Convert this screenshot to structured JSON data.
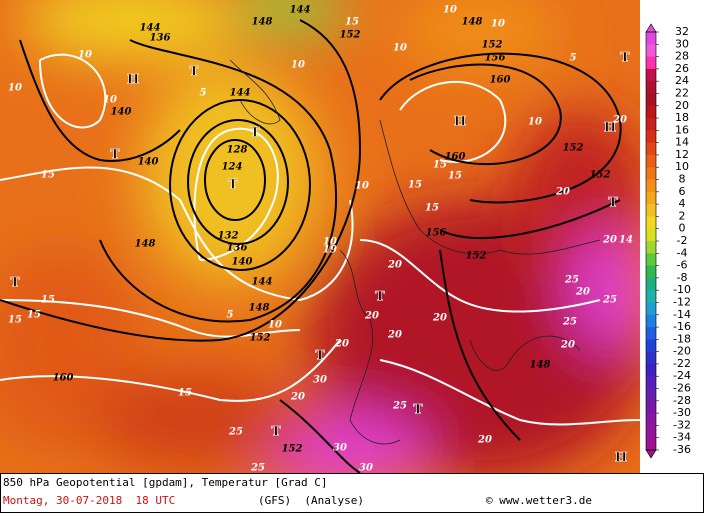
{
  "footer": {
    "title": "850 hPa Geopotential [gpdam], Temperatur [Grad C]",
    "date": "Montag, 30-07-2018  18 UTC",
    "model": "(GFS)  (Analyse)",
    "credit": "© www.wetter3.de"
  },
  "colorbar": {
    "ticks": [
      32,
      30,
      28,
      26,
      24,
      22,
      20,
      18,
      16,
      14,
      12,
      10,
      8,
      6,
      4,
      2,
      0,
      -2,
      -4,
      -6,
      -8,
      -10,
      -12,
      -14,
      -16,
      -18,
      -20,
      -22,
      -24,
      -26,
      -28,
      -30,
      -32,
      -34,
      -36
    ],
    "colors": [
      "#e048e0",
      "#f058d8",
      "#ff30b0",
      "#c0104a",
      "#b01030",
      "#a81028",
      "#b81818",
      "#c82020",
      "#d83018",
      "#e04818",
      "#e86018",
      "#ee7818",
      "#f09018",
      "#f2a818",
      "#f2c020",
      "#f0d820",
      "#d8e020",
      "#a0d830",
      "#60c840",
      "#30b850",
      "#20b080",
      "#20b0b0",
      "#20a0d0",
      "#2080e0",
      "#2060e0",
      "#2040d8",
      "#3030c8",
      "#4020c0",
      "#5820b8",
      "#6820b0",
      "#7818a8",
      "#8818a0",
      "#901898",
      "#a01090"
    ]
  },
  "map_labels": [
    "10",
    "10",
    "10",
    "136",
    "144",
    "148",
    "144",
    "15",
    "152",
    "10",
    "148",
    "10",
    "152",
    "156",
    "10",
    "H",
    "5",
    "140",
    "144",
    "T",
    "10",
    "160",
    "5",
    "H",
    "152",
    "10",
    "140",
    "T",
    "128",
    "124",
    "T",
    "T",
    "15",
    "132",
    "15",
    "15",
    "15",
    "10",
    "160",
    "152",
    "15",
    "148",
    "10",
    "136",
    "140",
    "19",
    "156",
    "20",
    "152",
    "144",
    "T",
    "H",
    "15",
    "15",
    "148",
    "20",
    "T",
    "5",
    "20",
    "20",
    "10",
    "152",
    "20",
    "20",
    "T",
    "20",
    "25",
    "20",
    "15",
    "T",
    "20",
    "30",
    "160",
    "25",
    "15",
    "25",
    "20",
    "148",
    "T",
    "25",
    "25",
    "20",
    "152",
    "30",
    "25",
    "30",
    "T",
    "H",
    "T",
    "20",
    "14"
  ]
}
